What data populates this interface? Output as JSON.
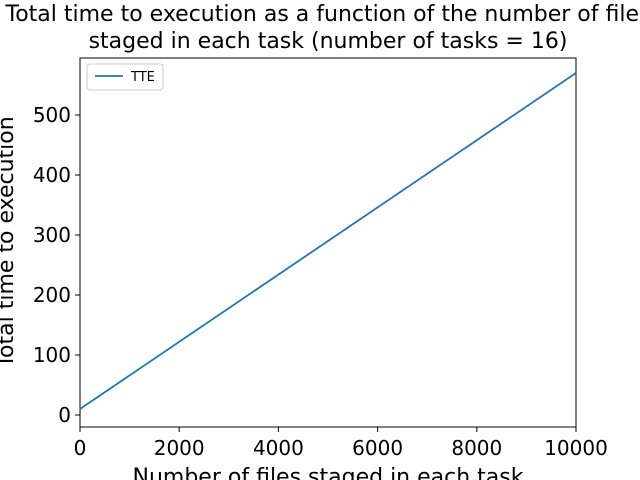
{
  "chart_data": {
    "type": "line",
    "title_lines": [
      "Total time to execution as a function of the number of files",
      "staged in each task (number of tasks = 16)"
    ],
    "xlabel": "Number of files staged in each task",
    "ylabel": "Total time to execution",
    "xlim": [
      0,
      10000
    ],
    "ylim": [
      -20,
      595
    ],
    "xticks": [
      0,
      2000,
      4000,
      6000,
      8000,
      10000
    ],
    "yticks": [
      0,
      100,
      200,
      300,
      400,
      500
    ],
    "grid": false,
    "legend_position": "top-left",
    "series": [
      {
        "name": "TTE",
        "color": "#1f77b4",
        "x": [
          0,
          10000
        ],
        "y": [
          10,
          570
        ]
      }
    ]
  }
}
